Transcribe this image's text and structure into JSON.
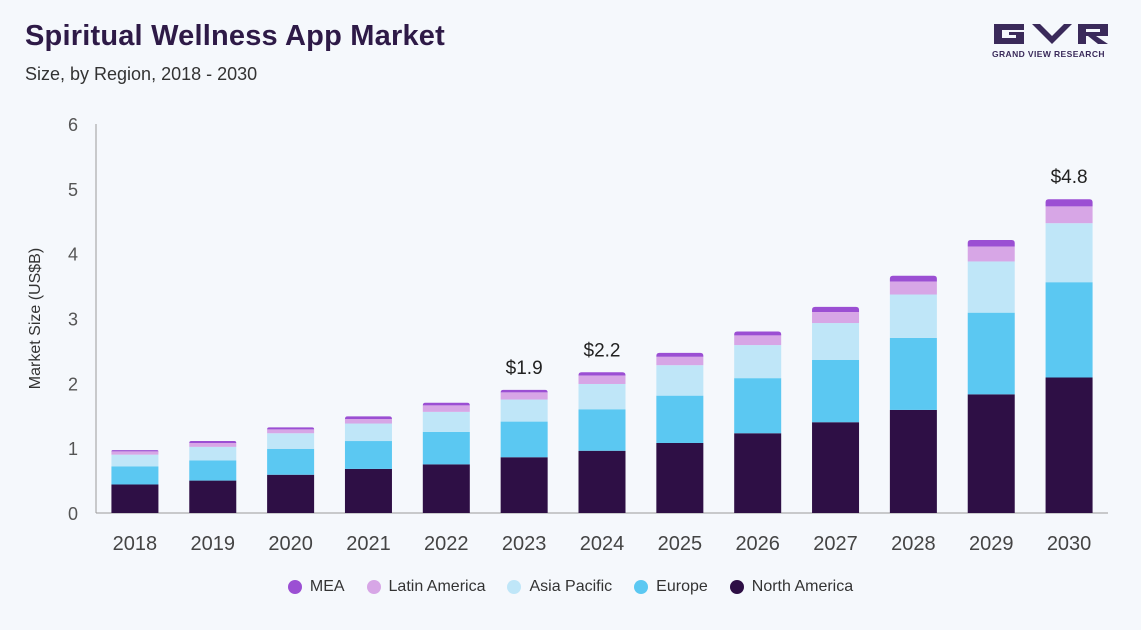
{
  "header": {
    "title": "Spiritual Wellness App Market",
    "subtitle": "Size, by Region, 2018 - 2030"
  },
  "logo": {
    "text": "GRAND VIEW RESEARCH"
  },
  "colors": {
    "North America": "#2e0f45",
    "Europe": "#5bc8f2",
    "Asia Pacific": "#bfe6f8",
    "Latin America": "#d7a6e6",
    "MEA": "#9b4fd3"
  },
  "chart_data": {
    "type": "bar",
    "stacked": true,
    "title": "Spiritual Wellness App Market",
    "subtitle": "Size, by Region, 2018 - 2030",
    "xlabel": "",
    "ylabel": "Market Size (US$B)",
    "ylim": [
      0,
      6
    ],
    "yticks": [
      "0",
      "1",
      "2",
      "3",
      "4",
      "5",
      "6"
    ],
    "categories": [
      "2018",
      "2019",
      "2020",
      "2021",
      "2022",
      "2023",
      "2024",
      "2025",
      "2026",
      "2027",
      "2028",
      "2029",
      "2030"
    ],
    "series": [
      {
        "name": "North America",
        "values": [
          0.44,
          0.5,
          0.59,
          0.68,
          0.75,
          0.86,
          0.96,
          1.08,
          1.23,
          1.4,
          1.59,
          1.83,
          2.09
        ]
      },
      {
        "name": "Europe",
        "values": [
          0.28,
          0.31,
          0.4,
          0.43,
          0.5,
          0.55,
          0.64,
          0.73,
          0.85,
          0.96,
          1.11,
          1.26,
          1.47
        ]
      },
      {
        "name": "Asia Pacific",
        "values": [
          0.18,
          0.21,
          0.24,
          0.27,
          0.31,
          0.34,
          0.39,
          0.47,
          0.51,
          0.57,
          0.67,
          0.79,
          0.91
        ]
      },
      {
        "name": "Latin America",
        "values": [
          0.05,
          0.06,
          0.06,
          0.07,
          0.1,
          0.11,
          0.13,
          0.13,
          0.15,
          0.17,
          0.2,
          0.23,
          0.26
        ]
      },
      {
        "name": "MEA",
        "values": [
          0.02,
          0.03,
          0.03,
          0.04,
          0.04,
          0.04,
          0.05,
          0.06,
          0.06,
          0.08,
          0.09,
          0.1,
          0.11
        ]
      }
    ],
    "total_labels": [
      {
        "category": "2023",
        "text": "$1.9"
      },
      {
        "category": "2024",
        "text": "$2.2"
      },
      {
        "category": "2030",
        "text": "$4.8"
      }
    ],
    "legend": [
      "MEA",
      "Latin America",
      "Asia Pacific",
      "Europe",
      "North America"
    ],
    "legend_position": "bottom",
    "grid": false
  }
}
